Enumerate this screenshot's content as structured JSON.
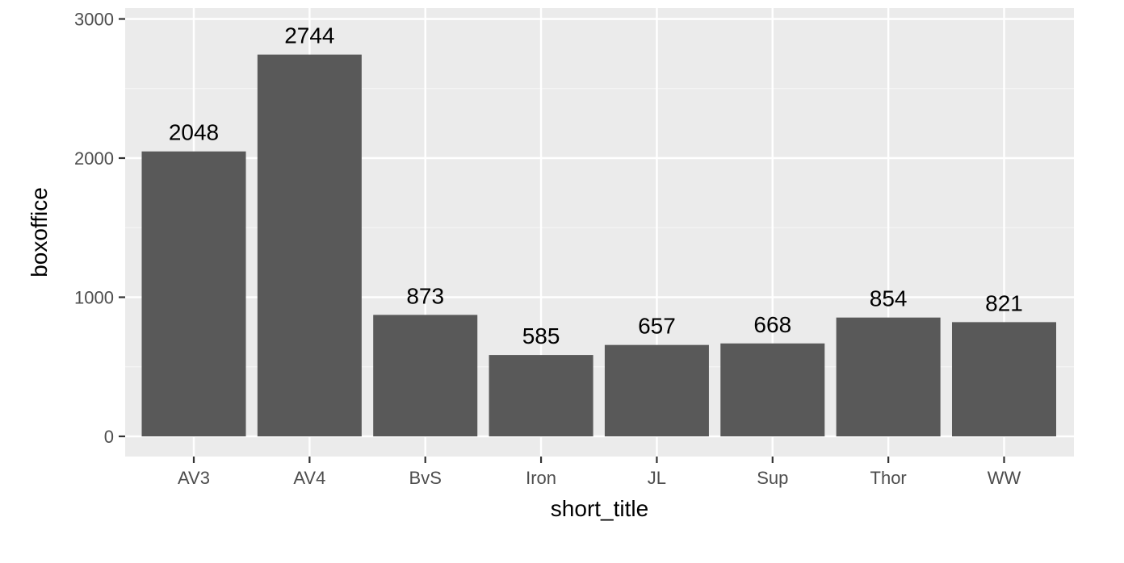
{
  "chart_data": {
    "type": "bar",
    "title": "",
    "xlabel": "short_title",
    "ylabel": "boxoffice",
    "categories": [
      "AV3",
      "AV4",
      "BvS",
      "Iron",
      "JL",
      "Sup",
      "Thor",
      "WW"
    ],
    "values": [
      2048,
      2744,
      873,
      585,
      657,
      668,
      854,
      821
    ],
    "data_labels": [
      "2048",
      "2744",
      "873",
      "585",
      "657",
      "668",
      "854",
      "821"
    ],
    "ylim": [
      0,
      3000
    ],
    "yticks": [
      0,
      1000,
      2000,
      3000
    ],
    "ytick_labels": [
      "0",
      "1000",
      "2000",
      "3000"
    ],
    "grid": true,
    "legend": "none"
  },
  "colors": {
    "panel_background": "#ebebeb",
    "grid_major": "#ffffff",
    "grid_minor": "#f5f5f5",
    "bar_fill": "#595959",
    "tick_text": "#4d4d4d",
    "title_text": "#000000"
  }
}
